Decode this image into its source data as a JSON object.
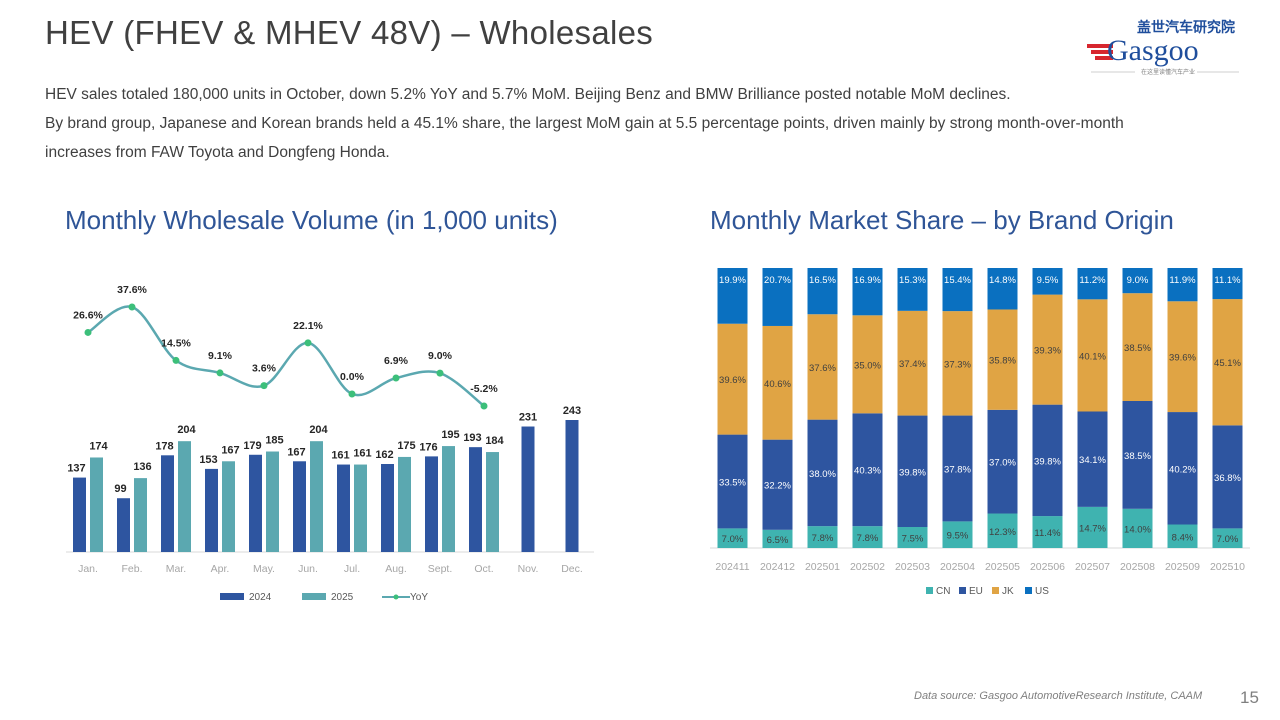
{
  "header": {
    "title": "HEV (FHEV & MHEV 48V) – Wholesales",
    "logo": {
      "cn_text": "盖世汽车研究院",
      "brand": "Gasgoo",
      "tagline": "在这里读懂汽车产业"
    }
  },
  "summary": {
    "lines": [
      "HEV sales totaled 180,000 units in October, down 5.2% YoY and 5.7% MoM. Beijing Benz and BMW Brilliance posted notable MoM declines.",
      "By brand group, Japanese and Korean brands held a 45.1% share, the largest MoM gain at 5.5 percentage points, driven mainly by strong month-over-month",
      "increases from FAW Toyota and Dongfeng Honda."
    ]
  },
  "footer": {
    "source": "Data source: Gasgoo AutomotiveResearch Institute, CAAM",
    "page_number": "15"
  },
  "colors": {
    "title_blue": "#2f5597",
    "bar_2024": "#2e55a0",
    "bar_2025": "#5ba8b0",
    "yoy_line": "#5ba8b0",
    "yoy_marker": "#3cbf7a",
    "CN": "#3fb3b0",
    "EU": "#2e55a0",
    "JK": "#e0a444",
    "US": "#0a70c0"
  },
  "chart_data": [
    {
      "type": "bar",
      "title": "Monthly Wholesale Volume (in 1,000 units)",
      "categories": [
        "Jan.",
        "Feb.",
        "Mar.",
        "Apr.",
        "May.",
        "Jun.",
        "Jul.",
        "Aug.",
        "Sept.",
        "Oct.",
        "Nov.",
        "Dec."
      ],
      "series": [
        {
          "name": "2024",
          "type": "bar",
          "values": [
            137,
            99,
            178,
            153,
            179,
            167,
            161,
            162,
            176,
            193,
            231,
            243
          ]
        },
        {
          "name": "2025",
          "type": "bar",
          "values": [
            174,
            136,
            204,
            167,
            185,
            204,
            161,
            175,
            195,
            184,
            null,
            null
          ]
        },
        {
          "name": "YoY",
          "type": "line",
          "values": [
            26.6,
            37.6,
            14.5,
            9.1,
            3.6,
            22.1,
            0.0,
            6.9,
            9.0,
            -5.2,
            null,
            null
          ],
          "labels": [
            "26.6%",
            "37.6%",
            "14.5%",
            "9.1%",
            "3.6%",
            "22.1%",
            "0.0%",
            "6.9%",
            "9.0%",
            "-5.2%",
            "",
            ""
          ]
        }
      ],
      "legend": [
        "2024",
        "2025",
        "YoY"
      ],
      "legend_position": "bottom",
      "xlabel": "",
      "ylabel": "",
      "ylim": [
        0,
        260
      ],
      "grid": false
    },
    {
      "type": "bar",
      "stacked": true,
      "percent": true,
      "title": "Monthly Market Share – by Brand Origin",
      "categories": [
        "202411",
        "202412",
        "202501",
        "202502",
        "202503",
        "202504",
        "202505",
        "202506",
        "202507",
        "202508",
        "202509",
        "202510"
      ],
      "series": [
        {
          "name": "CN",
          "values": [
            7.0,
            6.5,
            7.8,
            7.8,
            7.5,
            9.5,
            12.3,
            11.4,
            14.7,
            14.0,
            8.4,
            7.0
          ]
        },
        {
          "name": "EU",
          "values": [
            33.5,
            32.2,
            38.0,
            40.3,
            39.8,
            37.8,
            37.0,
            39.8,
            34.1,
            38.5,
            40.2,
            36.8
          ]
        },
        {
          "name": "JK",
          "values": [
            39.6,
            40.6,
            37.6,
            35.0,
            37.4,
            37.3,
            35.8,
            39.3,
            40.1,
            38.5,
            39.6,
            45.1
          ]
        },
        {
          "name": "US",
          "values": [
            19.9,
            20.7,
            16.5,
            16.9,
            15.3,
            15.4,
            14.8,
            9.5,
            11.2,
            9.0,
            11.9,
            11.1
          ]
        }
      ],
      "legend": [
        "CN",
        "EU",
        "JK",
        "US"
      ],
      "legend_position": "bottom",
      "ylim": [
        0,
        100
      ],
      "grid": false
    }
  ]
}
